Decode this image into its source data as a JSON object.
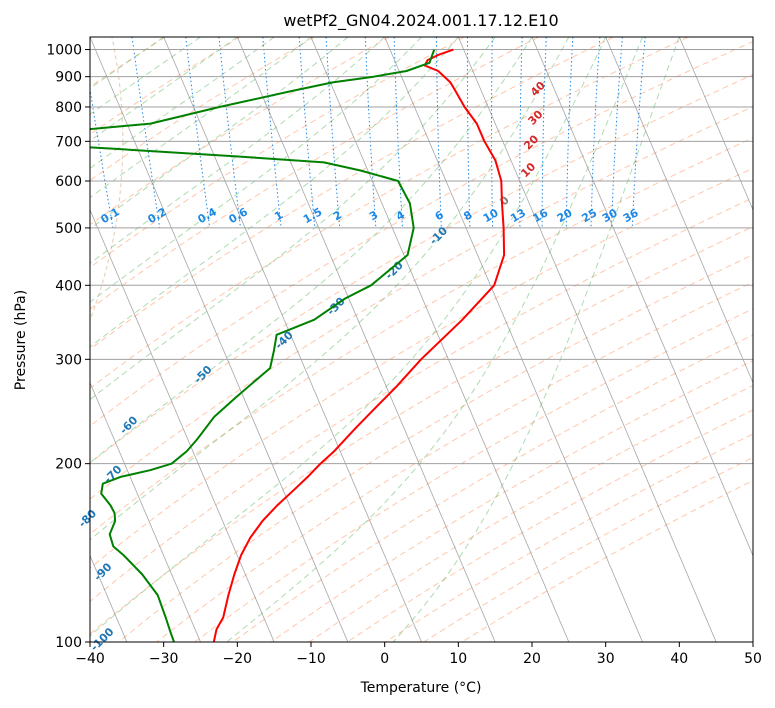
{
  "chart_data": {
    "type": "line",
    "subtype": "skew-T log-P diagram",
    "title": "wetPf2_GN04.2024.001.17.12.E10",
    "xlabel": "Temperature (°C)",
    "ylabel": "Pressure (hPa)",
    "xlim": [
      -40,
      50
    ],
    "ylim": [
      1050,
      100
    ],
    "y_scale": "log",
    "x_ticks": [
      -40,
      -30,
      -20,
      -10,
      0,
      10,
      20,
      30,
      40,
      50
    ],
    "y_ticks": [
      1000,
      900,
      800,
      700,
      600,
      500,
      400,
      300,
      200,
      100
    ],
    "grid": true,
    "series": [
      {
        "role": "temperature",
        "color": "#ff0000",
        "points": [
          [
            1000,
            8.6
          ],
          [
            980,
            6.3
          ],
          [
            960,
            4.5
          ],
          [
            940,
            3.8
          ],
          [
            920,
            5.3
          ],
          [
            880,
            6.3
          ],
          [
            850,
            6.5
          ],
          [
            800,
            6.8
          ],
          [
            750,
            7.5
          ],
          [
            700,
            7.5
          ],
          [
            650,
            7.9
          ],
          [
            600,
            7.5
          ],
          [
            550,
            6.3
          ],
          [
            500,
            5.1
          ],
          [
            450,
            3.6
          ],
          [
            400,
            0.5
          ],
          [
            350,
            -5.8
          ],
          [
            300,
            -13.7
          ],
          [
            270,
            -18.6
          ],
          [
            250,
            -22.4
          ],
          [
            230,
            -26.5
          ],
          [
            210,
            -30.8
          ],
          [
            200,
            -33.4
          ],
          [
            190,
            -35.9
          ],
          [
            180,
            -38.7
          ],
          [
            170,
            -41.7
          ],
          [
            160,
            -44.6
          ],
          [
            150,
            -47.2
          ],
          [
            140,
            -49.5
          ],
          [
            130,
            -51.5
          ],
          [
            120,
            -53.5
          ],
          [
            110,
            -55.5
          ],
          [
            105,
            -57.1
          ],
          [
            100,
            -58.2
          ]
        ]
      },
      {
        "role": "dewpoint",
        "color": "#008000",
        "points": [
          [
            1000,
            6.0
          ],
          [
            950,
            4.6
          ],
          [
            920,
            1.0
          ],
          [
            900,
            -3.8
          ],
          [
            880,
            -9.7
          ],
          [
            850,
            -16.0
          ],
          [
            800,
            -26.5
          ],
          [
            750,
            -36.8
          ],
          [
            720,
            -53.0
          ],
          [
            705,
            -63.5
          ],
          [
            695,
            -55.9
          ],
          [
            680,
            -43.2
          ],
          [
            660,
            -26.8
          ],
          [
            645,
            -15.5
          ],
          [
            625,
            -11.0
          ],
          [
            600,
            -6.5
          ],
          [
            550,
            -6.2
          ],
          [
            500,
            -7.1
          ],
          [
            450,
            -9.5
          ],
          [
            400,
            -16.2
          ],
          [
            380,
            -20.5
          ],
          [
            350,
            -25.9
          ],
          [
            330,
            -31.9
          ],
          [
            310,
            -33.2
          ],
          [
            290,
            -34.7
          ],
          [
            260,
            -40.8
          ],
          [
            240,
            -45.1
          ],
          [
            220,
            -48.7
          ],
          [
            210,
            -50.8
          ],
          [
            200,
            -53.6
          ],
          [
            195,
            -56.9
          ],
          [
            190,
            -61.3
          ],
          [
            185,
            -64.1
          ],
          [
            178,
            -64.9
          ],
          [
            170,
            -64.3
          ],
          [
            165,
            -64.2
          ],
          [
            160,
            -64.6
          ],
          [
            152,
            -66.1
          ],
          [
            145,
            -66.3
          ],
          [
            140,
            -65.4
          ],
          [
            130,
            -64.0
          ],
          [
            120,
            -63.1
          ],
          [
            110,
            -63.3
          ],
          [
            104,
            -63.5
          ],
          [
            100,
            -63.6
          ]
        ]
      }
    ],
    "dry_adiabats": {
      "color": "#ff9966",
      "style": "dashed"
    },
    "moist_adiabats": {
      "color": "#4caf50",
      "style": "dashed"
    },
    "isotherms": {
      "color": "#808080",
      "style": "solid"
    },
    "mixing_ratio_lines": {
      "color": "#1e88e5",
      "style": "dotted",
      "values": [
        0.1,
        0.2,
        0.4,
        0.6,
        1,
        1.5,
        2,
        3,
        4,
        6,
        8,
        10,
        13,
        16,
        20,
        25,
        30,
        36
      ],
      "labels": [
        "0.1",
        "0.2",
        "0.4",
        "0.6",
        "1",
        "1.5",
        "2",
        "3",
        "4",
        "6",
        "8",
        "10",
        "13",
        "16",
        "20",
        "25",
        "30",
        "36"
      ]
    },
    "hodograph_circle_labels": {
      "labels": [
        "-100",
        "-90",
        "-80",
        "-70",
        "-60",
        "-50",
        "-40",
        "-30",
        "-20",
        "-10"
      ],
      "color": "#1f77b4"
    },
    "adiabat_annotations": {
      "labels": [
        "0",
        "10",
        "20",
        "30",
        "40"
      ],
      "colors": [
        "#808080",
        "#d62728",
        "#d62728",
        "#d62728",
        "#d62728"
      ]
    }
  }
}
